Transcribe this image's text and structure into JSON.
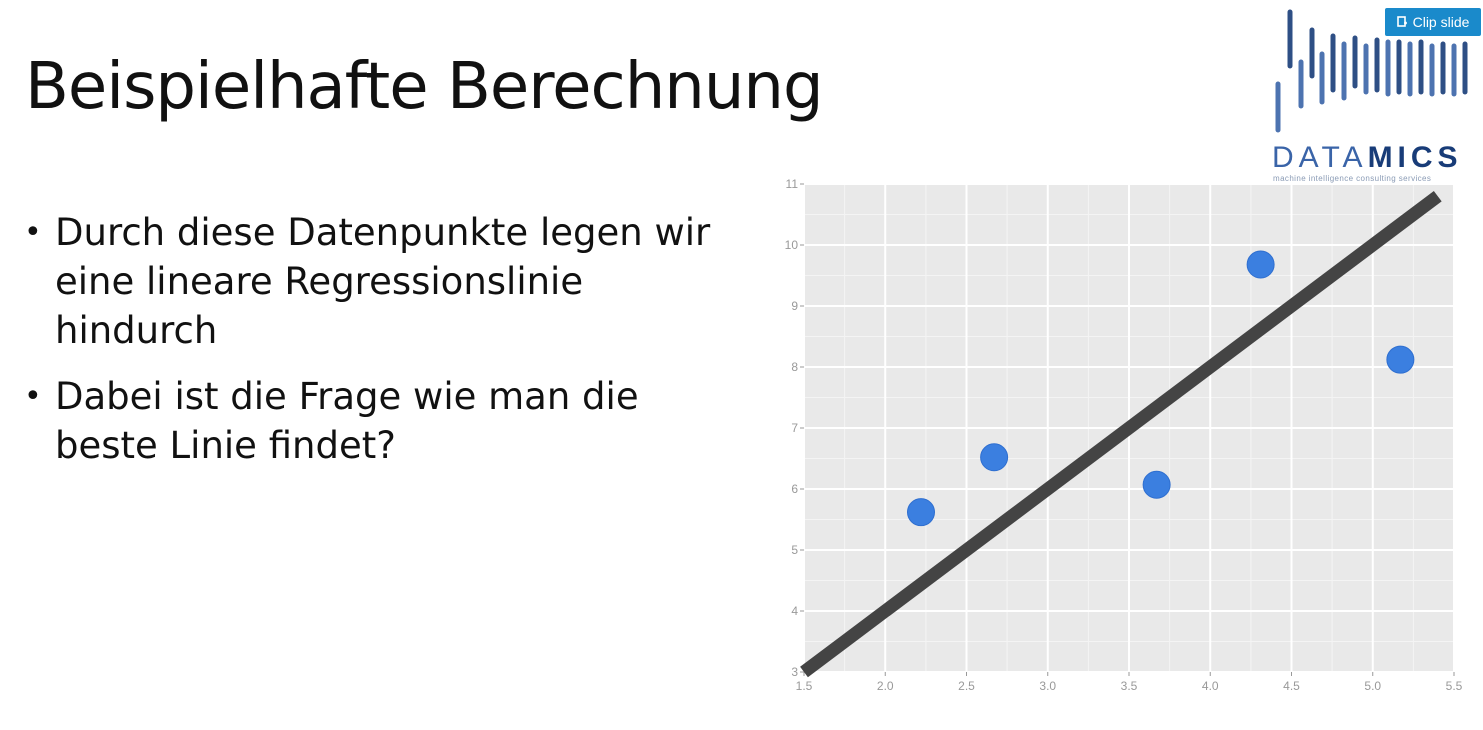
{
  "slide": {
    "title": "Beispielhafte Berechnung",
    "bullets": [
      "Durch diese Datenpunkte legen wir eine lineare Regressionslinie hindurch",
      "Dabei ist die Frage wie man die beste Linie findet?"
    ]
  },
  "toolbar": {
    "clip_label": "Clip slide"
  },
  "logo": {
    "name_prefix": "DATA",
    "name_suffix": "MICS",
    "tagline": "machine intelligence consulting services",
    "color_primary": "#3a64a8",
    "color_dark": "#183c78"
  },
  "chart_data": {
    "type": "scatter",
    "title": "",
    "xlabel": "",
    "ylabel": "",
    "xlim": [
      1.5,
      5.5
    ],
    "ylim": [
      3,
      11
    ],
    "x_ticks": [
      "1.5",
      "2.0",
      "2.5",
      "3.0",
      "3.5",
      "4.0",
      "4.5",
      "5.0",
      "5.5"
    ],
    "y_ticks": [
      "3",
      "4",
      "5",
      "6",
      "7",
      "8",
      "9",
      "10",
      "11"
    ],
    "grid": true,
    "background": "#e9e9e9",
    "points": [
      {
        "x": 2.22,
        "y": 5.62
      },
      {
        "x": 2.67,
        "y": 6.52
      },
      {
        "x": 3.67,
        "y": 6.07
      },
      {
        "x": 4.31,
        "y": 9.68
      },
      {
        "x": 5.17,
        "y": 8.12
      }
    ],
    "point_color": "#3b7fe0",
    "regression_line": {
      "x": [
        1.5,
        5.4
      ],
      "y": [
        3.0,
        10.8
      ],
      "color": "#444444"
    }
  }
}
